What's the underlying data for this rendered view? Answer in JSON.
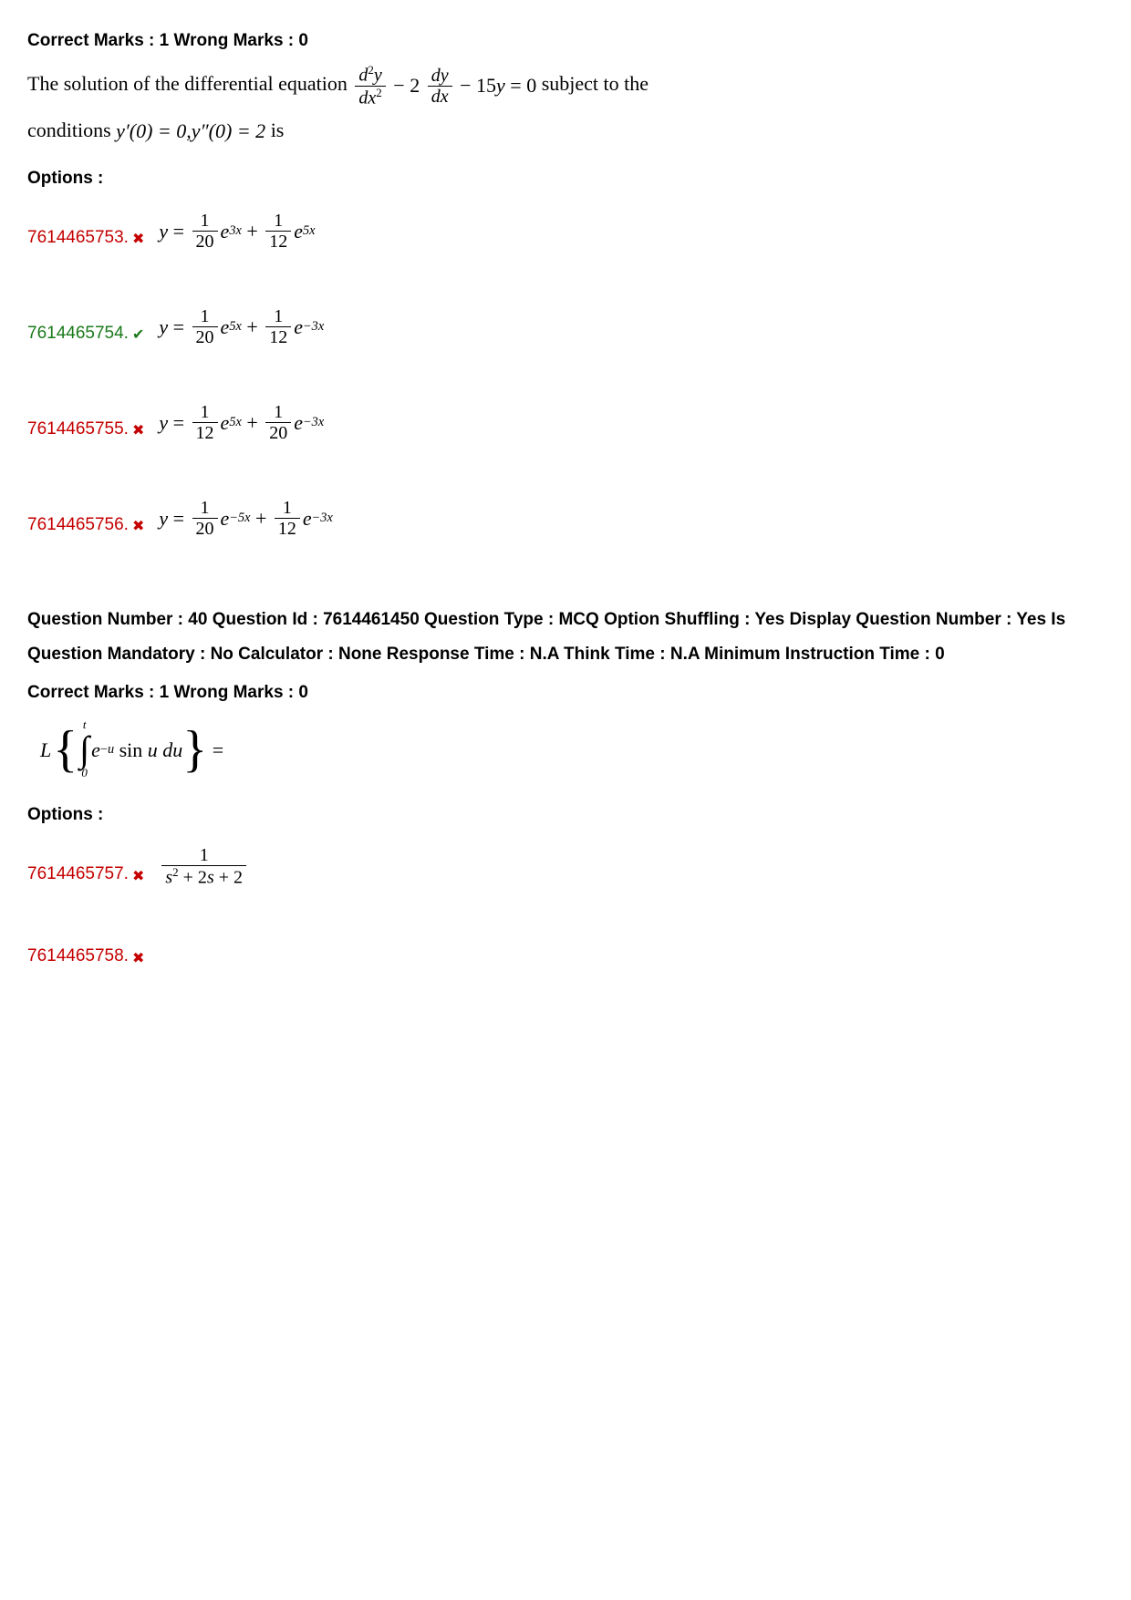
{
  "q1": {
    "marks": "Correct Marks : 1 Wrong Marks : 0",
    "question_prefix": "The solution of the differential equation ",
    "question_suffix": " subject to the",
    "question_line2_prefix": "conditions ",
    "question_line2_cond": "y′(0) = 0, y″(0) = 2",
    "question_line2_suffix": " is",
    "options_heading": "Options :",
    "options": [
      {
        "id": "7614465753.",
        "correct": false,
        "a_num": "1",
        "a_den": "20",
        "a_exp": "3x",
        "b_num": "1",
        "b_den": "12",
        "b_exp": "5x"
      },
      {
        "id": "7614465754.",
        "correct": true,
        "a_num": "1",
        "a_den": "20",
        "a_exp": "5x",
        "b_num": "1",
        "b_den": "12",
        "b_exp": "−3x"
      },
      {
        "id": "7614465755.",
        "correct": false,
        "a_num": "1",
        "a_den": "12",
        "a_exp": "5x",
        "b_num": "1",
        "b_den": "20",
        "b_exp": "−3x"
      },
      {
        "id": "7614465756.",
        "correct": false,
        "a_num": "1",
        "a_den": "20",
        "a_exp": "−5x",
        "b_num": "1",
        "b_den": "12",
        "b_exp": "−3x"
      }
    ]
  },
  "q2": {
    "meta": "Question Number : 40 Question Id : 7614461450 Question Type : MCQ Option Shuffling : Yes Display Question Number : Yes Is Question Mandatory : No Calculator : None Response Time : N.A Think Time : N.A Minimum Instruction Time : 0",
    "marks": "Correct Marks : 1 Wrong Marks : 0",
    "options_heading": "Options :",
    "options": [
      {
        "id": "7614465757.",
        "correct": false,
        "num": "1",
        "den": "s² + 2s + 2"
      },
      {
        "id": "7614465758.",
        "correct": false
      }
    ]
  }
}
